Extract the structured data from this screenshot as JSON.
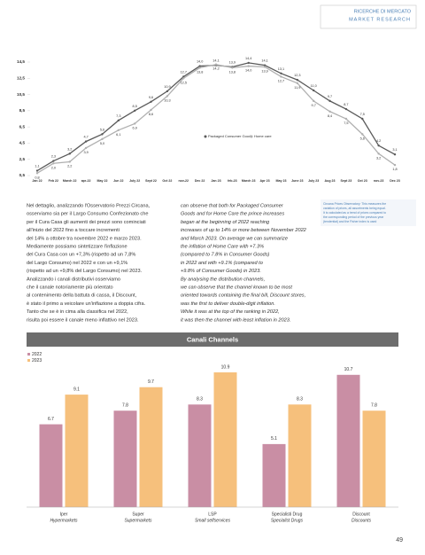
{
  "header": {
    "title": "RICERCHE DI MERCATO",
    "subtitle": "MARKET RESEARCH"
  },
  "chart_data": [
    {
      "type": "line",
      "categories": [
        "Jan 22",
        "Feb 22",
        "March 22",
        "apr-22",
        "May 22",
        "Jun 22",
        "July 22",
        "Sept 22",
        "Oct 22",
        "nov-22",
        "Dec 22",
        "Jan 23",
        "feb-23",
        "March 23",
        "Apr 23",
        "May 23",
        "June 23",
        "July 23",
        "Aug 23",
        "Sept 23",
        "Oct 23",
        "nov-23",
        "Dec 23"
      ],
      "series": [
        {
          "name": "Packaged Consumer Goods",
          "color": "#5a5a5a",
          "values": [
            1.1,
            2.3,
            3.2,
            4.7,
            5.6,
            7.3,
            8.5,
            9.6,
            10.9,
            12.7,
            14.0,
            14.1,
            13.9,
            14.4,
            14.1,
            13.1,
            12.3,
            11.0,
            9.7,
            8.7,
            7.5,
            4.2,
            3.1
          ],
          "value_labels": [
            "1,1",
            "2,3",
            "3,2",
            "4,7",
            "5,6",
            "7,3",
            "8,5",
            "9,6",
            "10,9",
            "12,7",
            "14,0",
            "14,1",
            "13,9",
            "14,4",
            "14,1",
            "13,1",
            "12,3",
            "11,0",
            "9,7",
            "8,7",
            "7,5",
            "4,2",
            "3,1"
          ]
        },
        {
          "name": "Home care",
          "color": "#b0b0b0",
          "values": [
            0.8,
            2.0,
            2.2,
            3.9,
            5.0,
            6.1,
            6.9,
            8.6,
            10.3,
            12.5,
            13.8,
            14.2,
            13.8,
            14.0,
            13.9,
            12.7,
            11.9,
            9.7,
            8.4,
            7.5,
            5.6,
            3.2,
            1.8
          ],
          "value_labels": [
            "0,8",
            "2,0",
            "2,2",
            "3,9",
            "5,0",
            "6,1",
            "6,9",
            "8,6",
            "10,3",
            "12,5",
            "13,8",
            "14,2",
            "13,8",
            "14,0",
            "13,9",
            "12,7",
            "11,9",
            "9,7",
            "8,4",
            "7,5",
            "5,6",
            "3,2",
            "1,8"
          ]
        }
      ],
      "ylim": [
        0.5,
        14.5
      ],
      "yticks": [
        {
          "value": 0.5,
          "label": "0,5"
        },
        {
          "value": 2.5,
          "label": "2,5"
        },
        {
          "value": 4.5,
          "label": "4,5"
        },
        {
          "value": 6.5,
          "label": "6,5"
        },
        {
          "value": 8.5,
          "label": "8,5"
        },
        {
          "value": 10.5,
          "label": "10,5"
        },
        {
          "value": 12.5,
          "label": "12,5"
        },
        {
          "value": 14.5,
          "label": "14,5"
        }
      ],
      "grid": false
    },
    {
      "type": "bar",
      "title": "Canali  Channels",
      "categories": [
        "Iper",
        "Super",
        "LSP",
        "Specialisti Drug",
        "Discount"
      ],
      "category_translations": [
        "Hypermarkets",
        "Supermarkets",
        "Small selfservices",
        "Specialist Drugs",
        "Discounts"
      ],
      "series": [
        {
          "name": "2022",
          "color": "#c98ea4",
          "values": [
            6.7,
            7.8,
            8.3,
            5.1,
            10.7
          ]
        },
        {
          "name": "2023",
          "color": "#f6c07c",
          "values": [
            9.1,
            9.7,
            10.9,
            8.3,
            7.8
          ]
        }
      ]
    }
  ],
  "text": {
    "italian": [
      "Nel dettaglio, analizzando l'Osservatorio Prezzi Circana,",
      "osserviamo sia per il Largo Consumo Confezionato che",
      "per il Cura Casa gli aumenti dei prezzi sono cominciati",
      "all'inizio del 2022 fino a toccare incrementi",
      "del 14% a ottobre tra novembre 2022 e marzo 2023.",
      "Mediamente possiamo sintetizzare l'inflazione",
      "del Cura Casa con un +7,3% (rispetto ad un 7,8%",
      "del Largo Consumo) nel 2022 e con un +9,1%",
      "(rispetto ad un +9,8% del Largo Consumo) nel 2023.",
      "Analizzando i canali distributivi osserviamo",
      "che il canale notoriamente più orientato",
      "al contenimento della battuta di cassa, il Discount,",
      "è stato il primo a veicolare un'inflazione a doppia cifra.",
      "Tanto che se è in cima alla classifica nel 2022,",
      "risulta poi essere il canale meno inflattivo nel 2023."
    ],
    "english": [
      "can observe that both for Packaged Consumer",
      "Goods and for Home Care the prince increases",
      "began at the beginning of 2022 reaching",
      "increases of up to 14% or more between November 2022",
      "and March 2023. On average we can summarize",
      "the inflation of Home Care with +7.3%",
      "(compared to 7.8% in Consumer Goods)",
      "in 2022 and with +9.1% (compared to",
      "+9.8% of Consumer Goods) in 2023.",
      "By analysing the distribution channels,",
      "we can observe that the channel known to be most",
      "oriented towards containing the final bill, Discount stores,",
      "was the first to deliver double-digit inflation.",
      "While it was at the top of the ranking in 2022,",
      "it was then the channel with least inflation in 2023."
    ],
    "note": [
      "Circana Prices Observatory: This measures the",
      "variation of prices, all assortments being equal.",
      "It is calculated as a trend of prices compared to",
      "the corresponding period of the previous year",
      "(tendential) and the Fisher index is used"
    ]
  },
  "page_number": "49"
}
